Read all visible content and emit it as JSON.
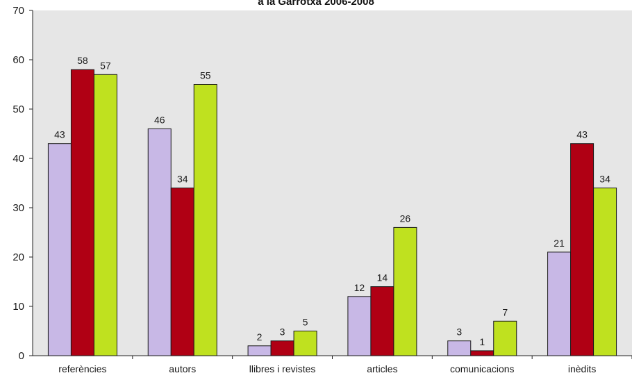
{
  "chart_data": {
    "type": "bar",
    "title": "a la Garrotxa 2006-2008",
    "categories": [
      "referències",
      "autors",
      "llibres i revistes",
      "articles",
      "comunicacions",
      "inèdits"
    ],
    "series": [
      {
        "values": [
          43,
          46,
          2,
          12,
          3,
          21
        ],
        "color": "#c8b8e6"
      },
      {
        "values": [
          58,
          34,
          3,
          14,
          1,
          43
        ],
        "color": "#b00014"
      },
      {
        "values": [
          57,
          55,
          5,
          26,
          7,
          34
        ],
        "color": "#bfe11f"
      }
    ],
    "ylim": [
      0,
      70
    ],
    "yticks": [
      0,
      10,
      20,
      30,
      40,
      50,
      60,
      70
    ],
    "grid": false,
    "plot_background": "#e6e6e6",
    "xlabel": "",
    "ylabel": ""
  }
}
